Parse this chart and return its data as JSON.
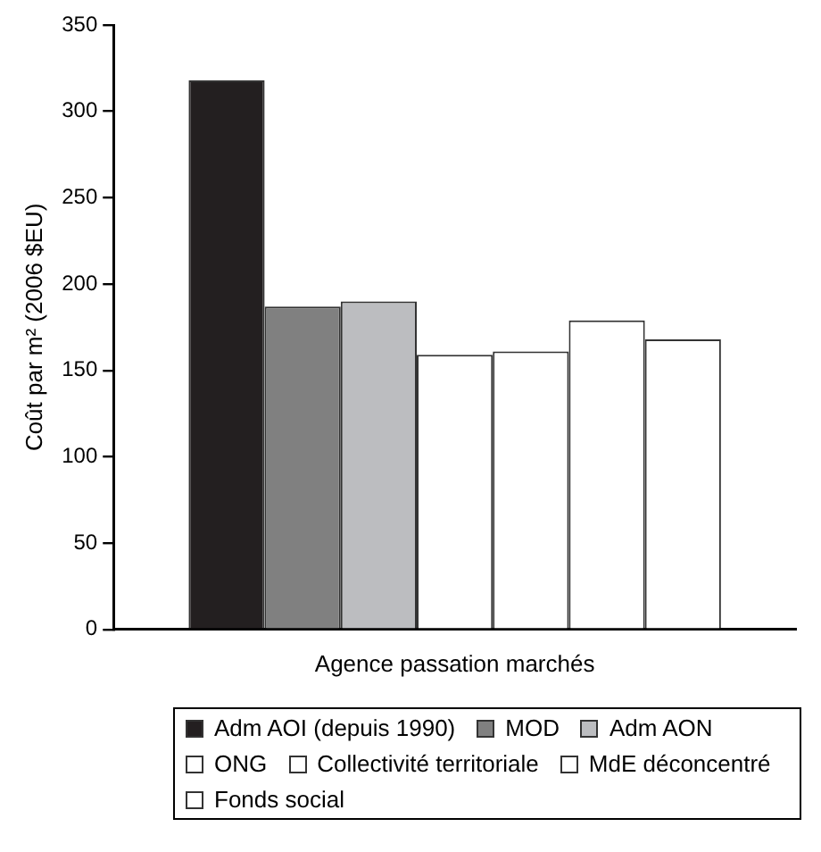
{
  "chart_data": {
    "type": "bar",
    "categories": [
      "Agence passation marchés"
    ],
    "ylabel": "Coût par m² (2006 $EU)",
    "ylim": [
      0,
      350
    ],
    "yticks": [
      0,
      50,
      100,
      150,
      200,
      250,
      300,
      350
    ],
    "grid": false,
    "legend": "bottom",
    "series": [
      {
        "name": "Adm AOI (depuis 1990)",
        "color": "#231f20",
        "values": [
          318
        ]
      },
      {
        "name": "MOD",
        "color": "#808080",
        "values": [
          187
        ]
      },
      {
        "name": "Adm AON",
        "color": "#bcbdc0",
        "values": [
          190
        ]
      },
      {
        "name": "ONG",
        "color": "#ffffff",
        "values": [
          159
        ]
      },
      {
        "name": "Collectivité territoriale",
        "color": "#ffffff",
        "values": [
          161
        ]
      },
      {
        "name": "MdE déconcentré",
        "color": "#ffffff",
        "values": [
          179
        ]
      },
      {
        "name": "Fonds social",
        "color": "#ffffff",
        "values": [
          168
        ]
      }
    ]
  }
}
